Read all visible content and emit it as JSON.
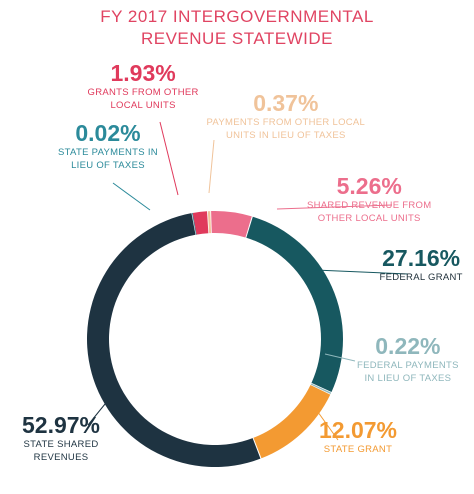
{
  "title_lines": [
    "FY 2017 INTERGOVERNMENTAL",
    "REVENUE STATEWIDE"
  ],
  "chart_data": {
    "type": "pie",
    "style": "donut",
    "title": "FY 2017 INTERGOVERNMENTAL REVENUE STATEWIDE",
    "unit": "%",
    "slices": [
      {
        "percent": "5.26%",
        "value": 5.26,
        "lines": [
          "SHARED REVENUE FROM",
          "OTHER LOCAL UNITS"
        ],
        "color": "#ec6e8c"
      },
      {
        "percent": "27.16%",
        "value": 27.16,
        "lines": [
          "FEDERAL GRANT"
        ],
        "color": "#175860"
      },
      {
        "percent": "0.22%",
        "value": 0.22,
        "lines": [
          "FEDERAL PAYMENTS",
          "IN LIEU OF TAXES"
        ],
        "color": "#8fb7bc"
      },
      {
        "percent": "12.07%",
        "value": 12.07,
        "lines": [
          "STATE GRANT"
        ],
        "color": "#f39a32"
      },
      {
        "percent": "52.97%",
        "value": 52.97,
        "lines": [
          "STATE SHARED",
          "REVENUES"
        ],
        "color": "#1e3341"
      },
      {
        "percent": "0.02%",
        "value": 0.02,
        "lines": [
          "STATE PAYMENTS IN",
          "LIEU OF TAXES"
        ],
        "color": "#2b8a9a"
      },
      {
        "percent": "1.93%",
        "value": 1.93,
        "lines": [
          "GRANTS FROM OTHER",
          "LOCAL UNITS"
        ],
        "color": "#e03a5c"
      },
      {
        "percent": "0.37%",
        "value": 0.37,
        "lines": [
          "PAYMENTS FROM OTHER LOCAL",
          "UNITS IN LIEU OF TAXES"
        ],
        "color": "#f0c39a"
      }
    ]
  }
}
